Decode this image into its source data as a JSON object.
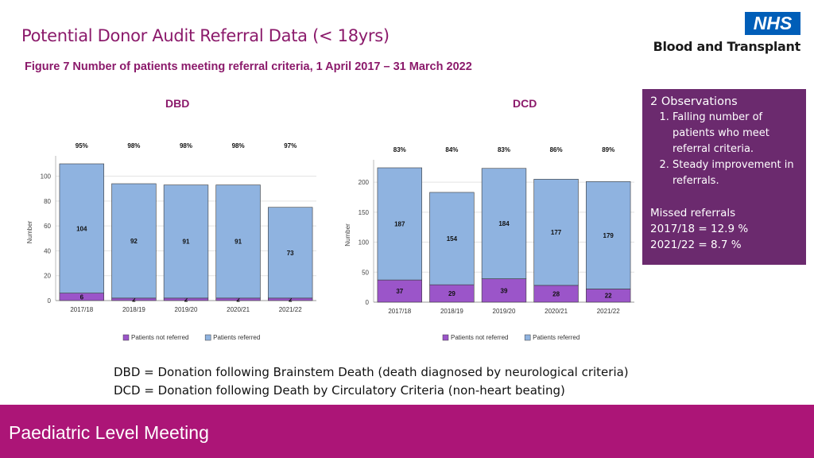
{
  "header": {
    "title": "Potential Donor Audit Referral Data (< 18yrs)",
    "figure_caption": "Figure 7  Number of patients meeting referral criteria, 1 April 2017 – 31 March 2022",
    "logo_text": "NHS",
    "logo_subtitle": "Blood and Transplant"
  },
  "observations": {
    "title": "2 Observations",
    "items": [
      "Falling number of patients who meet referral criteria.",
      "Steady improvement in referrals."
    ],
    "missed_title": "Missed referrals",
    "missed_lines": [
      "2017/18 = 12.9 %",
      "2021/22 = 8.7 %"
    ]
  },
  "footnotes": [
    "DBD = Donation following Brainstem Death (death diagnosed by neurological criteria)",
    "DCD = Donation following Death by Circulatory Criteria (non-heart beating)"
  ],
  "footer": {
    "text": "Paediatric Level Meeting"
  },
  "colors": {
    "not_referred": "#9b55c9",
    "referred": "#8fb3e0",
    "title": "#8b1a6b",
    "footer_bg": "#ac1577",
    "observations_bg": "#6b2a6e"
  },
  "chart_data": [
    {
      "type": "bar",
      "stacked": true,
      "title": "DBD",
      "categories": [
        "2017/18",
        "2018/19",
        "2019/20",
        "2020/21",
        "2021/22"
      ],
      "series": [
        {
          "name": "Patients not referred",
          "values": [
            6,
            2,
            2,
            2,
            2
          ]
        },
        {
          "name": "Patients referred",
          "values": [
            104,
            92,
            91,
            91,
            73
          ]
        }
      ],
      "percent_labels": [
        "95%",
        "98%",
        "98%",
        "98%",
        "97%"
      ],
      "ylabel": "Number",
      "ylim": [
        0,
        110
      ],
      "yticks": [
        0,
        20,
        40,
        60,
        80,
        100
      ],
      "legend": "bottom",
      "grid": true
    },
    {
      "type": "bar",
      "stacked": true,
      "title": "DCD",
      "categories": [
        "2017/18",
        "2018/19",
        "2019/20",
        "2020/21",
        "2021/22"
      ],
      "series": [
        {
          "name": "Patients not referred",
          "values": [
            37,
            29,
            39,
            28,
            22
          ]
        },
        {
          "name": "Patients referred",
          "values": [
            187,
            154,
            184,
            177,
            179
          ]
        }
      ],
      "percent_labels": [
        "83%",
        "84%",
        "83%",
        "86%",
        "89%"
      ],
      "ylabel": "Number",
      "ylim": [
        0,
        224
      ],
      "yticks": [
        0,
        50,
        100,
        150,
        200
      ],
      "legend": "bottom",
      "grid": true
    }
  ]
}
